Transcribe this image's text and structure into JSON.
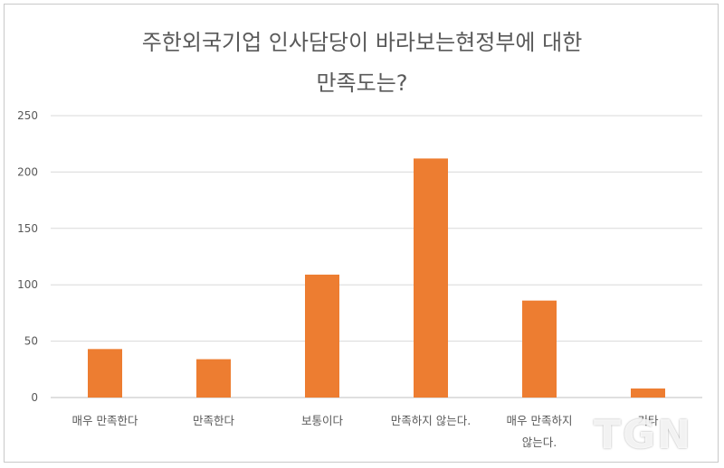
{
  "chart_data": {
    "type": "bar",
    "title_line1": "주한외국기업 인사담당이 바라보는현정부에 대한",
    "title_line2": "만족도는?",
    "categories": [
      [
        "매우 만족한다"
      ],
      [
        "만족한다"
      ],
      [
        "보통이다"
      ],
      [
        "만족하지 않는다."
      ],
      [
        "매우 만족하지",
        "않는다."
      ],
      [
        "기타"
      ]
    ],
    "values": [
      43,
      34,
      109,
      212,
      86,
      8
    ],
    "ylim": [
      0,
      250
    ],
    "yticks": [
      0,
      50,
      100,
      150,
      200,
      250
    ],
    "bar_color": "#ED7D31",
    "grid": true
  },
  "watermark": "TGN"
}
